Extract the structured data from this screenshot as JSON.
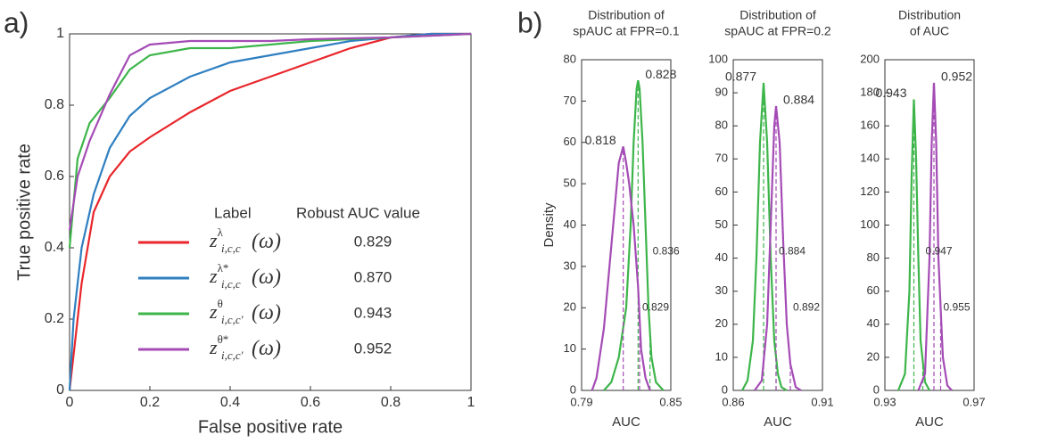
{
  "panels": [
    "a)",
    "b)"
  ],
  "chart_data": [
    {
      "type": "line",
      "xlabel": "False positive rate",
      "ylabel": "True positive rate",
      "xlim": [
        0,
        1
      ],
      "ylim": [
        0,
        1
      ],
      "xticks": [
        0,
        0.2,
        0.4,
        0.6,
        0.8,
        1
      ],
      "yticks": [
        0,
        0.2,
        0.4,
        0.6,
        0.8,
        1
      ],
      "legend_headers": [
        "Label",
        "Robust AUC value"
      ],
      "series": [
        {
          "color": "#e8262b",
          "label": {
            "base": "z",
            "sup": "λ",
            "sub": "i,c,c",
            "arg": "(ω)"
          },
          "robust_auc": "0.829",
          "x": [
            0,
            0.01,
            0.03,
            0.06,
            0.1,
            0.15,
            0.2,
            0.3,
            0.4,
            0.5,
            0.6,
            0.7,
            0.8,
            0.9,
            1
          ],
          "values": [
            0,
            0.1,
            0.3,
            0.5,
            0.6,
            0.67,
            0.71,
            0.78,
            0.84,
            0.88,
            0.92,
            0.96,
            0.99,
            1,
            1
          ]
        },
        {
          "color": "#2f7fc1",
          "label": {
            "base": "z",
            "sup": "λ*",
            "sub": "i,c,c",
            "arg": "(ω)"
          },
          "robust_auc": "0.870",
          "x": [
            0,
            0.01,
            0.03,
            0.06,
            0.1,
            0.15,
            0.2,
            0.3,
            0.4,
            0.5,
            0.6,
            0.7,
            0.8,
            0.9,
            1
          ],
          "values": [
            0,
            0.2,
            0.4,
            0.55,
            0.68,
            0.77,
            0.82,
            0.88,
            0.92,
            0.94,
            0.96,
            0.98,
            0.99,
            1,
            1
          ]
        },
        {
          "color": "#3db54a",
          "label": {
            "base": "z",
            "sup": "θ",
            "sub": "i,c,c'",
            "arg": "(ω)"
          },
          "robust_auc": "0.943",
          "x": [
            0,
            0.02,
            0.05,
            0.1,
            0.15,
            0.2,
            0.3,
            0.4,
            0.5,
            0.6,
            0.8,
            1
          ],
          "values": [
            0.4,
            0.65,
            0.75,
            0.82,
            0.9,
            0.94,
            0.96,
            0.96,
            0.97,
            0.98,
            0.99,
            1
          ]
        },
        {
          "color": "#a44bb5",
          "label": {
            "base": "z",
            "sup": "θ*",
            "sub": "i,c,c'",
            "arg": "(ω)"
          },
          "robust_auc": "0.952",
          "x": [
            0,
            0.02,
            0.05,
            0.1,
            0.15,
            0.2,
            0.3,
            0.5,
            0.6,
            0.8,
            1
          ],
          "values": [
            0.45,
            0.6,
            0.7,
            0.83,
            0.94,
            0.97,
            0.98,
            0.98,
            0.985,
            0.99,
            1
          ]
        }
      ]
    },
    {
      "type": "density",
      "title": [
        "Distribution of",
        "spAUC at FPR=0.1"
      ],
      "xlabel": "AUC",
      "ylabel": "Density",
      "xlim": [
        0.79,
        0.85
      ],
      "xticks": [
        0.79,
        0.85
      ],
      "ylim": [
        0,
        80
      ],
      "yticks": [
        0,
        10,
        20,
        30,
        40,
        50,
        60,
        70,
        80
      ],
      "series": [
        {
          "color": "#3db54a",
          "mean": 0.828,
          "upper": 0.836,
          "x": [
            0.805,
            0.81,
            0.815,
            0.82,
            0.823,
            0.825,
            0.827,
            0.828,
            0.829,
            0.831,
            0.833,
            0.835,
            0.837,
            0.84,
            0.845
          ],
          "values": [
            0,
            2,
            8,
            20,
            40,
            60,
            73,
            75,
            73,
            60,
            40,
            20,
            8,
            2,
            0
          ]
        },
        {
          "color": "#a44bb5",
          "mean": 0.818,
          "upper": 0.829,
          "x": [
            0.797,
            0.8,
            0.805,
            0.81,
            0.815,
            0.818,
            0.82,
            0.822,
            0.825,
            0.828,
            0.83,
            0.833,
            0.836
          ],
          "values": [
            0,
            3,
            15,
            35,
            55,
            59,
            55,
            50,
            40,
            25,
            10,
            3,
            0
          ]
        }
      ]
    },
    {
      "type": "density",
      "title": [
        "Distribution of",
        "spAUC at FPR=0.2"
      ],
      "xlabel": "AUC",
      "ylabel": "",
      "xlim": [
        0.86,
        0.91
      ],
      "xticks": [
        0.86,
        0.91
      ],
      "ylim": [
        0,
        100
      ],
      "yticks": [
        0,
        10,
        20,
        30,
        40,
        50,
        60,
        70,
        80,
        90,
        100
      ],
      "series": [
        {
          "color": "#3db54a",
          "mean": 0.877,
          "upper": 0.884,
          "x": [
            0.865,
            0.868,
            0.871,
            0.873,
            0.875,
            0.877,
            0.879,
            0.881,
            0.883,
            0.885,
            0.887,
            0.89
          ],
          "values": [
            0,
            3,
            15,
            40,
            75,
            93,
            75,
            40,
            15,
            5,
            1,
            0
          ]
        },
        {
          "color": "#a44bb5",
          "mean": 0.884,
          "upper": 0.892,
          "x": [
            0.872,
            0.876,
            0.879,
            0.881,
            0.883,
            0.884,
            0.886,
            0.888,
            0.89,
            0.892,
            0.895,
            0.898
          ],
          "values": [
            0,
            3,
            20,
            50,
            80,
            86,
            75,
            45,
            20,
            8,
            1,
            0
          ]
        }
      ]
    },
    {
      "type": "density",
      "title": [
        "Distribution",
        "of AUC"
      ],
      "xlabel": "AUC",
      "ylabel": "",
      "xlim": [
        0.93,
        0.97
      ],
      "xticks": [
        0.93,
        0.97
      ],
      "ylim": [
        0,
        200
      ],
      "yticks": [
        0,
        20,
        40,
        60,
        80,
        100,
        120,
        140,
        160,
        180,
        200
      ],
      "series": [
        {
          "color": "#3db54a",
          "mean": 0.943,
          "upper": 0.947,
          "x": [
            0.936,
            0.939,
            0.941,
            0.942,
            0.943,
            0.944,
            0.945,
            0.946,
            0.948,
            0.95
          ],
          "values": [
            0,
            10,
            60,
            130,
            176,
            140,
            80,
            30,
            5,
            0
          ]
        },
        {
          "color": "#a44bb5",
          "mean": 0.952,
          "upper": 0.955,
          "x": [
            0.945,
            0.948,
            0.95,
            0.951,
            0.952,
            0.953,
            0.954,
            0.956,
            0.958,
            0.96
          ],
          "values": [
            0,
            10,
            80,
            150,
            186,
            150,
            80,
            20,
            3,
            0
          ]
        }
      ]
    }
  ]
}
